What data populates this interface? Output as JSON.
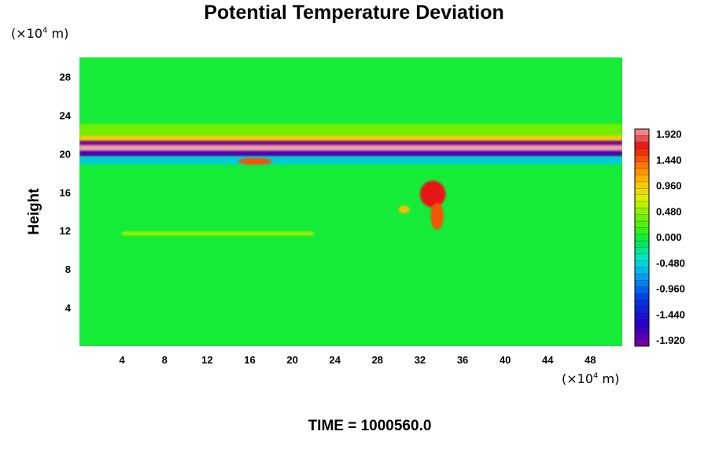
{
  "chart_data": {
    "type": "heatmap",
    "title": "Potential Temperature Deviation",
    "xlabel": "",
    "ylabel": "Height",
    "x_unit": {
      "prefix": "(×10",
      "exp": "4",
      "suffix": " m)"
    },
    "y_unit": {
      "prefix": "(×10",
      "exp": "4",
      "suffix": " m)"
    },
    "xlim": [
      0,
      51
    ],
    "ylim": [
      0,
      30
    ],
    "xticks": [
      4,
      8,
      12,
      16,
      20,
      24,
      28,
      32,
      36,
      40,
      44,
      48
    ],
    "yticks": [
      4,
      8,
      12,
      16,
      20,
      24,
      28
    ],
    "background_value": 0.0,
    "colorbar": {
      "min": -1.92,
      "max": 1.92,
      "levels": 33,
      "tick_labels": [
        "1.920",
        "1.440",
        "0.960",
        "0.480",
        "0.000",
        "-0.480",
        "-0.960",
        "-1.440",
        "-1.920"
      ]
    },
    "features": [
      {
        "kind": "band",
        "y_center": 20.6,
        "y_halfwidth": 0.45,
        "value": 1.92
      },
      {
        "kind": "band",
        "y_center": 21.2,
        "y_halfwidth": 0.3,
        "value": -1.9
      },
      {
        "kind": "band",
        "y_center": 20.0,
        "y_halfwidth": 0.3,
        "value": -1.7
      },
      {
        "kind": "band",
        "y_center": 21.7,
        "y_halfwidth": 0.35,
        "value": 0.9
      },
      {
        "kind": "band",
        "y_center": 22.5,
        "y_halfwidth": 0.6,
        "value": 0.35
      },
      {
        "kind": "band",
        "y_center": 19.3,
        "y_halfwidth": 0.4,
        "value": -0.5
      },
      {
        "kind": "band",
        "y_center": 11.7,
        "y_halfwidth": 0.2,
        "value": 0.5,
        "x_range": [
          4,
          22
        ]
      },
      {
        "kind": "blob",
        "x": 33.2,
        "y": 15.8,
        "rx": 1.2,
        "ry": 1.4,
        "value": 1.6
      },
      {
        "kind": "blob",
        "x": 33.6,
        "y": 13.5,
        "rx": 0.6,
        "ry": 1.4,
        "value": 1.4
      },
      {
        "kind": "blob",
        "x": 30.5,
        "y": 14.2,
        "rx": 0.5,
        "ry": 0.4,
        "value": 1.0
      },
      {
        "kind": "blob",
        "x": 16.5,
        "y": 19.2,
        "rx": 1.6,
        "ry": 0.35,
        "value": 1.4
      }
    ]
  },
  "time_label": "TIME = 1000560.0"
}
